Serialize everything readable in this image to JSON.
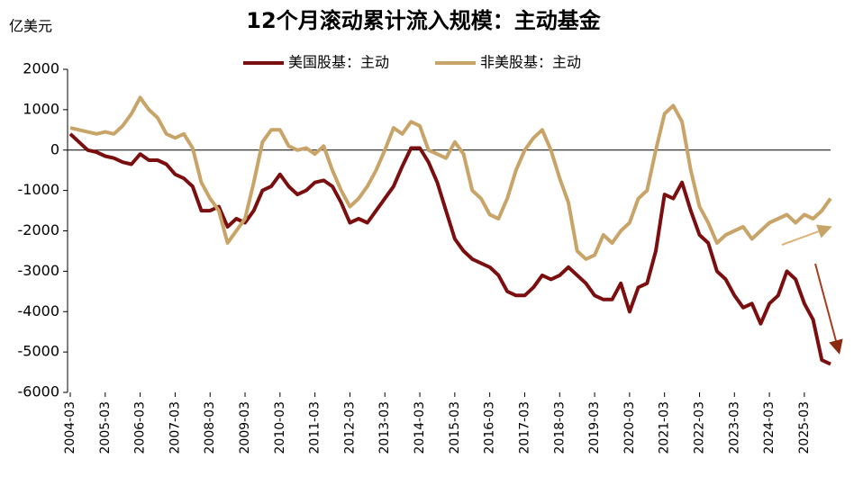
{
  "chart_data": {
    "type": "line",
    "title": "12个月滚动累计流入规模：主动基金",
    "y_unit": "亿美元",
    "categories": [
      "2004-03",
      null,
      null,
      null,
      "2005-03",
      null,
      null,
      null,
      "2006-03",
      null,
      null,
      null,
      "2007-03",
      null,
      null,
      null,
      "2008-03",
      null,
      null,
      null,
      "2009-03",
      null,
      null,
      null,
      "2010-03",
      null,
      null,
      null,
      "2011-03",
      null,
      null,
      null,
      "2012-03",
      null,
      null,
      null,
      "2013-03",
      null,
      null,
      null,
      "2014-03",
      null,
      null,
      null,
      "2015-03",
      null,
      null,
      null,
      "2016-03",
      null,
      null,
      null,
      "2017-03",
      null,
      null,
      null,
      "2018-03",
      null,
      null,
      null,
      "2019-03",
      null,
      null,
      null,
      "2020-03",
      null,
      null,
      null,
      "2021-03",
      null,
      null,
      null,
      "2022-03",
      null,
      null,
      null,
      "2023-03",
      null,
      null,
      null,
      "2024-03",
      null,
      null,
      null,
      "2025-03",
      null,
      null,
      null
    ],
    "series": [
      {
        "name": "美国股基：主动",
        "color": "#7b0f0f",
        "values": [
          400,
          200,
          0,
          -50,
          -150,
          -200,
          -300,
          -350,
          -100,
          -250,
          -250,
          -350,
          -600,
          -700,
          -900,
          -1500,
          -1500,
          -1400,
          -1900,
          -1700,
          -1800,
          -1500,
          -1000,
          -900,
          -600,
          -900,
          -1100,
          -1000,
          -800,
          -750,
          -900,
          -1300,
          -1800,
          -1700,
          -1800,
          -1500,
          -1200,
          -900,
          -400,
          50,
          50,
          -300,
          -800,
          -1500,
          -2200,
          -2500,
          -2700,
          -2800,
          -2900,
          -3100,
          -3500,
          -3600,
          -3600,
          -3400,
          -3100,
          -3200,
          -3100,
          -2900,
          -3100,
          -3300,
          -3600,
          -3700,
          -3700,
          -3300,
          -4000,
          -3400,
          -3300,
          -2500,
          -1100,
          -1200,
          -800,
          -1500,
          -2100,
          -2300,
          -3000,
          -3200,
          -3600,
          -3900,
          -3800,
          -4300,
          -3800,
          -3600,
          -3000,
          -3200,
          -3800,
          -4200,
          -5200,
          -5300
        ]
      },
      {
        "name": "非美股基：主动",
        "color": "#c8a468",
        "values": [
          550,
          500,
          450,
          400,
          450,
          400,
          600,
          900,
          1300,
          1000,
          800,
          400,
          300,
          400,
          50,
          -800,
          -1200,
          -1500,
          -2300,
          -2000,
          -1700,
          -800,
          200,
          500,
          500,
          100,
          0,
          50,
          -100,
          100,
          -500,
          -1000,
          -1400,
          -1200,
          -900,
          -500,
          0,
          550,
          400,
          700,
          600,
          0,
          -100,
          -200,
          200,
          -100,
          -1000,
          -1200,
          -1600,
          -1700,
          -1200,
          -500,
          0,
          300,
          500,
          0,
          -700,
          -1300,
          -2500,
          -2700,
          -2600,
          -2100,
          -2300,
          -2000,
          -1800,
          -1200,
          -1000,
          0,
          900,
          1100,
          700,
          -500,
          -1400,
          -1800,
          -2300,
          -2100,
          -2000,
          -1900,
          -2200,
          -2000,
          -1800,
          -1700,
          -1600,
          -1800,
          -1600,
          -1700,
          -1500,
          -1200
        ]
      }
    ],
    "ylim": [
      -6000,
      2000
    ],
    "yticks": [
      -6000,
      -5000,
      -4000,
      -3000,
      -2000,
      -1000,
      0,
      1000,
      2000
    ],
    "grid": false,
    "legend": "top"
  }
}
